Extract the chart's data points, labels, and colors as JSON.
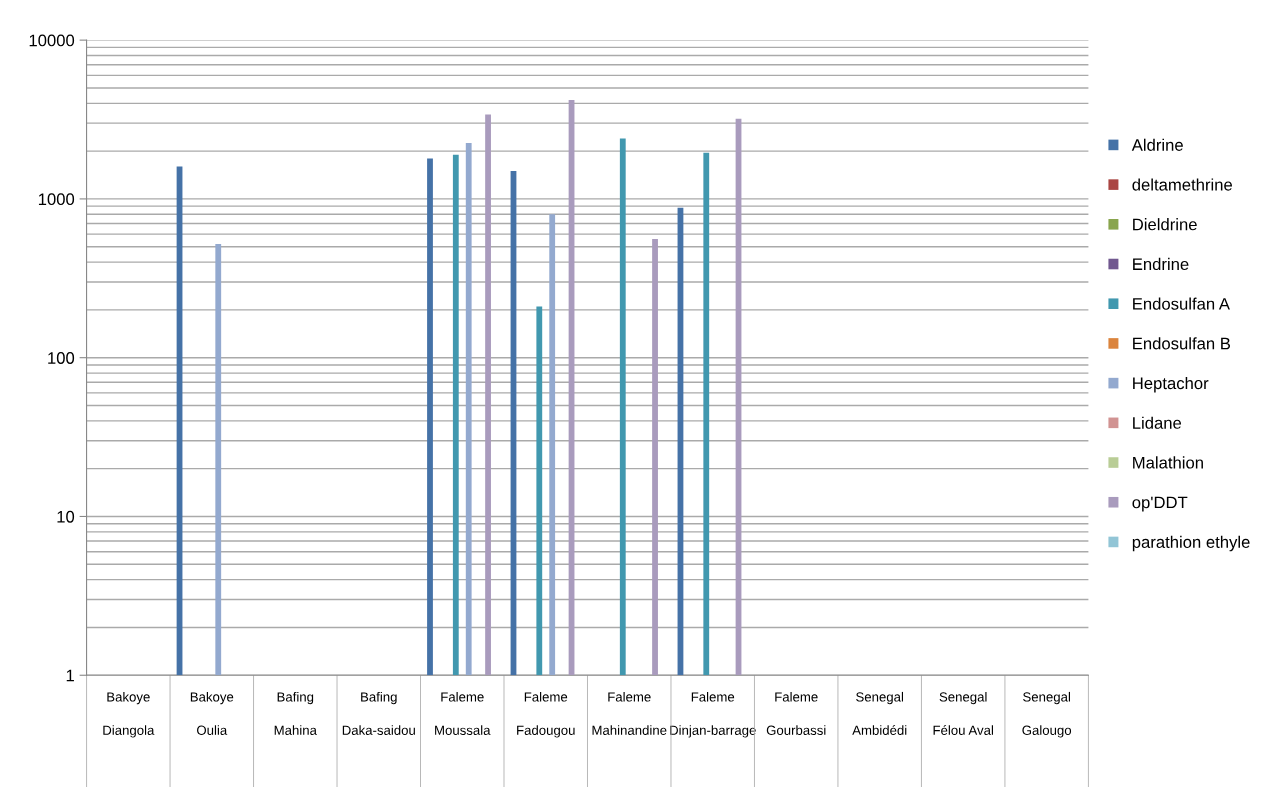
{
  "chart_data": {
    "type": "bar",
    "categories": [
      "Bakoye\nDiangola",
      "Bakoye\nOulia",
      "Bafing\nMahina",
      "Bafing\nDaka-saidou",
      "Faleme\nMoussala",
      "Faleme\nFadougou",
      "Faleme\nMahinandine",
      "Faleme\nDinjan-barrage",
      "Faleme\nGourbassi",
      "Senegal\nAmbidédi",
      "Senegal\nFélou Aval",
      "Senegal\nGalougo"
    ],
    "series": [
      {
        "name": "Aldrine",
        "color": "#4572a7",
        "values": [
          null,
          1600,
          null,
          null,
          1800,
          1500,
          null,
          880,
          null,
          null,
          null,
          null
        ]
      },
      {
        "name": "deltamethrine",
        "color": "#aa4643",
        "values": [
          null,
          null,
          null,
          null,
          null,
          null,
          null,
          null,
          null,
          null,
          null,
          null
        ]
      },
      {
        "name": "Dieldrine",
        "color": "#89a54e",
        "values": [
          null,
          null,
          null,
          null,
          null,
          null,
          null,
          null,
          null,
          null,
          null,
          null
        ]
      },
      {
        "name": "Endrine",
        "color": "#71588f",
        "values": [
          null,
          null,
          null,
          null,
          null,
          null,
          null,
          null,
          null,
          null,
          null,
          null
        ]
      },
      {
        "name": "Endosulfan A",
        "color": "#4198af",
        "values": [
          null,
          null,
          null,
          null,
          1900,
          210,
          2400,
          1950,
          null,
          null,
          null,
          null
        ]
      },
      {
        "name": "Endosulfan B",
        "color": "#db843d",
        "values": [
          null,
          null,
          null,
          null,
          null,
          null,
          null,
          null,
          null,
          null,
          null,
          null
        ]
      },
      {
        "name": "Heptachor",
        "color": "#93a9cf",
        "values": [
          null,
          520,
          null,
          null,
          2250,
          800,
          null,
          null,
          null,
          null,
          null,
          null
        ]
      },
      {
        "name": "Lidane",
        "color": "#d19392",
        "values": [
          null,
          null,
          null,
          null,
          null,
          null,
          null,
          null,
          null,
          null,
          null,
          null
        ]
      },
      {
        "name": "Malathion",
        "color": "#b9cd96",
        "values": [
          null,
          null,
          null,
          null,
          null,
          null,
          null,
          null,
          null,
          null,
          null,
          null
        ]
      },
      {
        "name": "op'DDT",
        "color": "#a99bbd",
        "values": [
          null,
          null,
          null,
          null,
          3400,
          4200,
          560,
          3200,
          null,
          null,
          null,
          null
        ]
      },
      {
        "name": "parathion ethyle",
        "color": "#92c5d6",
        "values": [
          null,
          null,
          null,
          null,
          null,
          null,
          null,
          null,
          null,
          null,
          null,
          null
        ]
      }
    ],
    "log": true,
    "ylim": [
      1,
      10000
    ],
    "yticks": [
      1,
      10,
      100,
      1000,
      10000
    ],
    "grid": "y",
    "legend": "right"
  }
}
